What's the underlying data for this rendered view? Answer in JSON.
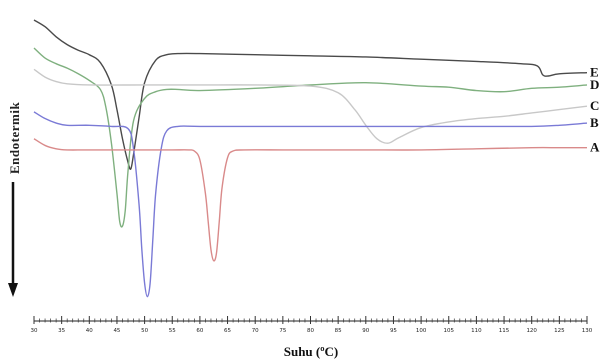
{
  "chart_data": {
    "type": "line",
    "title": "",
    "xlabel": "Suhu (ºC)",
    "ylabel": "Endotermik",
    "xlim": [
      30,
      130
    ],
    "x_ticks": [
      "30",
      "35",
      "40",
      "45",
      "50",
      "55",
      "60",
      "65",
      "70",
      "75",
      "80",
      "85",
      "90",
      "95",
      "100",
      "105",
      "110",
      "115",
      "120",
      "125",
      "130"
    ],
    "grid": false,
    "legend": "series labels at right end of each curve",
    "series": [
      {
        "name": "E",
        "color": "#4a4a4a",
        "x": [
          30,
          32,
          34,
          36,
          38,
          40,
          42,
          44,
          45,
          46,
          47,
          47.5,
          48,
          49,
          50,
          52,
          54,
          56,
          60,
          70,
          80,
          90,
          100,
          110,
          118,
          121,
          122,
          123,
          125,
          130
        ],
        "y": [
          10.0,
          9.4,
          8.5,
          7.8,
          7.3,
          6.9,
          6.2,
          4.2,
          2.0,
          -0.6,
          -2.7,
          -3.3,
          -2.0,
          1.3,
          4.4,
          6.4,
          6.9,
          7.0,
          7.0,
          6.9,
          6.8,
          6.7,
          6.5,
          6.3,
          6.1,
          5.9,
          5.1,
          5.0,
          5.2,
          5.3
        ]
      },
      {
        "name": "D",
        "color": "#7fb07f",
        "x": [
          30,
          32,
          34,
          36,
          38,
          40,
          42,
          43,
          44,
          45,
          45.5,
          46,
          46.5,
          47,
          48,
          50,
          52,
          54,
          56,
          60,
          70,
          80,
          90,
          100,
          105,
          110,
          115,
          120,
          125,
          130
        ],
        "y": [
          7.5,
          6.6,
          6.1,
          5.7,
          5.2,
          4.6,
          3.8,
          2.2,
          -1.0,
          -5.5,
          -8.0,
          -8.4,
          -7.0,
          -3.5,
          1.0,
          3.0,
          3.6,
          3.8,
          3.8,
          3.7,
          3.9,
          4.2,
          4.4,
          4.1,
          4.0,
          3.7,
          3.6,
          3.9,
          4.0,
          4.2
        ]
      },
      {
        "name": "C",
        "color": "#c8c8c8",
        "x": [
          30,
          32,
          34,
          36,
          40,
          50,
          60,
          70,
          80,
          85,
          88,
          90,
          92,
          94,
          96,
          100,
          105,
          110,
          115,
          120,
          125,
          130
        ],
        "y": [
          5.6,
          4.9,
          4.5,
          4.3,
          4.2,
          4.2,
          4.2,
          4.2,
          4.1,
          3.5,
          2.0,
          0.6,
          -0.6,
          -1.0,
          -0.5,
          0.4,
          0.9,
          1.2,
          1.4,
          1.7,
          2.0,
          2.3
        ]
      },
      {
        "name": "B",
        "color": "#7a7ad6",
        "x": [
          30,
          32,
          34,
          36,
          40,
          44,
          47,
          48,
          49,
          49.5,
          50,
          50.5,
          51,
          51.5,
          52,
          53,
          54,
          56,
          60,
          70,
          80,
          90,
          100,
          110,
          120,
          125,
          130
        ],
        "y": [
          1.8,
          1.2,
          0.8,
          0.6,
          0.6,
          0.5,
          0.3,
          -1.5,
          -6.5,
          -10.5,
          -13.5,
          -14.7,
          -13.5,
          -9.5,
          -5.5,
          -1.5,
          0.1,
          0.5,
          0.5,
          0.5,
          0.5,
          0.5,
          0.5,
          0.5,
          0.5,
          0.6,
          0.8
        ]
      },
      {
        "name": "A",
        "color": "#d98a8a",
        "x": [
          30,
          32,
          34,
          36,
          40,
          50,
          55,
          58,
          59,
          60,
          61,
          61.5,
          62,
          62.5,
          63,
          63.5,
          64,
          65,
          66,
          68,
          75,
          80,
          90,
          100,
          110,
          120,
          125,
          130
        ],
        "y": [
          -0.6,
          -1.2,
          -1.5,
          -1.6,
          -1.6,
          -1.6,
          -1.6,
          -1.6,
          -1.7,
          -2.5,
          -5.5,
          -8.0,
          -10.5,
          -11.5,
          -10.8,
          -8.0,
          -5.0,
          -2.3,
          -1.7,
          -1.6,
          -1.6,
          -1.6,
          -1.6,
          -1.6,
          -1.5,
          -1.4,
          -1.4,
          -1.4
        ]
      }
    ]
  }
}
